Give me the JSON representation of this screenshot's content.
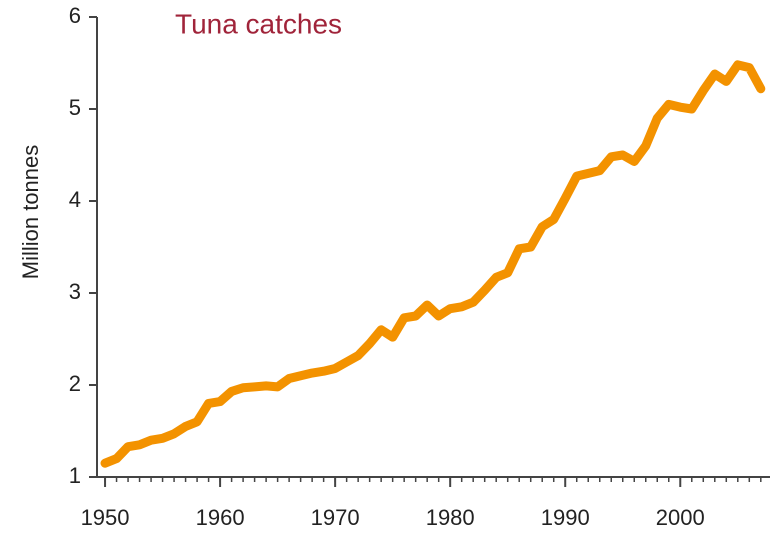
{
  "chart_data": {
    "type": "line",
    "title": "Tuna catches",
    "y_label": "Million tonnes",
    "x": [
      1950,
      1951,
      1952,
      1953,
      1954,
      1955,
      1956,
      1957,
      1958,
      1959,
      1960,
      1961,
      1962,
      1963,
      1964,
      1965,
      1966,
      1967,
      1968,
      1969,
      1970,
      1971,
      1972,
      1973,
      1974,
      1975,
      1976,
      1977,
      1978,
      1979,
      1980,
      1981,
      1982,
      1983,
      1984,
      1985,
      1986,
      1987,
      1988,
      1989,
      1990,
      1991,
      1992,
      1993,
      1994,
      1995,
      1996,
      1997,
      1998,
      1999,
      2000,
      2001,
      2002,
      2003,
      2004,
      2005,
      2006,
      2007
    ],
    "series": [
      {
        "color": "#f39200",
        "values": [
          1.15,
          1.2,
          1.33,
          1.35,
          1.4,
          1.42,
          1.47,
          1.55,
          1.6,
          1.8,
          1.82,
          1.93,
          1.97,
          1.98,
          1.99,
          1.98,
          2.07,
          2.1,
          2.13,
          2.15,
          2.18,
          2.25,
          2.32,
          2.45,
          2.6,
          2.52,
          2.73,
          2.75,
          2.87,
          2.75,
          2.83,
          2.85,
          2.9,
          3.03,
          3.17,
          3.22,
          3.48,
          3.5,
          3.72,
          3.8,
          4.03,
          4.27,
          4.3,
          4.33,
          4.48,
          4.5,
          4.43,
          4.6,
          4.9,
          5.05,
          5.02,
          5.0,
          5.2,
          5.38,
          5.3,
          5.48,
          5.45,
          5.22
        ]
      }
    ],
    "xlim": [
      1949.3,
      2007.8
    ],
    "ylim": [
      1,
      6
    ],
    "xticks": [
      1950,
      1960,
      1970,
      1980,
      1990,
      2000
    ],
    "yticks": [
      1,
      2,
      3,
      4,
      5,
      6
    ]
  }
}
